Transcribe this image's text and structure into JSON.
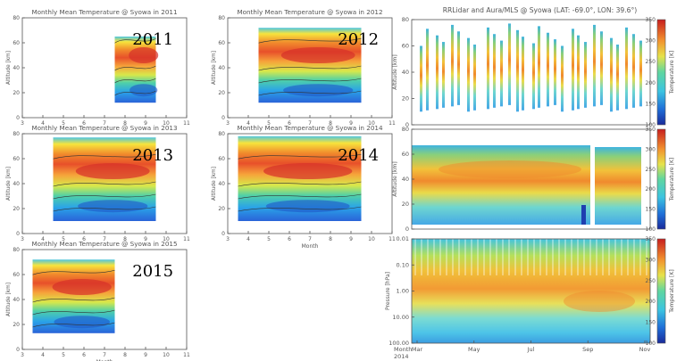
{
  "chart_data": [
    {
      "type": "heatmap",
      "title": "Monthly Mean Temperature @ Syowa in 2011",
      "panel_label": "2011",
      "ylabel": "Altitude [km]",
      "xlabel": "",
      "xlim": [
        3,
        11
      ],
      "ylim": [
        0,
        80
      ],
      "xticks": [
        "3",
        "4",
        "5",
        "6",
        "7",
        "8",
        "9",
        "10",
        "11"
      ],
      "yticks": [
        "0",
        "20",
        "40",
        "60",
        "80"
      ],
      "data_months": [
        7.5,
        9.5
      ],
      "data_altitude_km": [
        12,
        65
      ]
    },
    {
      "type": "heatmap",
      "title": "Monthly Mean Temperature @ Syowa in 2012",
      "panel_label": "2012",
      "ylabel": "Altitude [km]",
      "xlabel": "",
      "xlim": [
        3,
        11
      ],
      "ylim": [
        0,
        80
      ],
      "xticks": [
        "3",
        "4",
        "5",
        "6",
        "7",
        "8",
        "9",
        "10",
        "11"
      ],
      "yticks": [
        "0",
        "20",
        "40",
        "60",
        "80"
      ],
      "data_months": [
        4.5,
        9.5
      ],
      "data_altitude_km": [
        12,
        72
      ]
    },
    {
      "type": "heatmap",
      "title": "Monthly Mean Temperature @ Syowa in 2013",
      "panel_label": "2013",
      "ylabel": "Altitude [km]",
      "xlabel": "",
      "xlim": [
        3,
        11
      ],
      "ylim": [
        0,
        80
      ],
      "xticks": [
        "3",
        "4",
        "5",
        "6",
        "7",
        "8",
        "9",
        "10",
        "11"
      ],
      "yticks": [
        "0",
        "20",
        "40",
        "60",
        "80"
      ],
      "data_months": [
        4.5,
        9.5
      ],
      "data_altitude_km": [
        10,
        77
      ]
    },
    {
      "type": "heatmap",
      "title": "Monthly Mean Temperature @ Syowa in 2014",
      "panel_label": "2014",
      "ylabel": "Altitude [km]",
      "xlabel": "Month",
      "xlim": [
        3,
        11
      ],
      "ylim": [
        0,
        80
      ],
      "xticks": [
        "3",
        "4",
        "5",
        "6",
        "7",
        "8",
        "9",
        "10",
        "11"
      ],
      "yticks": [
        "0",
        "20",
        "40",
        "60",
        "80"
      ],
      "data_months": [
        3.5,
        9.5
      ],
      "data_altitude_km": [
        10,
        78
      ]
    },
    {
      "type": "heatmap",
      "title": "Monthly Mean Temperature @ Syowa in 2015",
      "panel_label": "2015",
      "ylabel": "Altitude [km]",
      "xlabel": "Month",
      "xlim": [
        3,
        11
      ],
      "ylim": [
        0,
        80
      ],
      "xticks": [
        "3",
        "4",
        "5",
        "6",
        "7",
        "8",
        "9",
        "10",
        "11"
      ],
      "yticks": [
        "0",
        "20",
        "40",
        "60",
        "80"
      ],
      "data_months": [
        3.5,
        7.5
      ],
      "data_altitude_km": [
        13,
        72
      ]
    },
    {
      "type": "heatmap",
      "title": "RRLidar and Aura/MLS @ Syowa (LAT: -69.0°, LON: 39.6°)",
      "panels": [
        {
          "ylabel": "Altitude [km]",
          "yticks": [
            "0",
            "20",
            "40",
            "60",
            "80"
          ],
          "ylim": [
            0,
            80
          ],
          "source": "lidar profiles (sparse)"
        },
        {
          "ylabel": "Altitude [km]",
          "yticks": [
            "0",
            "20",
            "40",
            "60",
            "80"
          ],
          "ylim": [
            0,
            80
          ],
          "source": "lidar interpolated"
        },
        {
          "ylabel": "Pressure [hPa]",
          "yticks": [
            "0.01",
            "0.10",
            "1.00",
            "10.00",
            "100.00"
          ],
          "ylim_hPa": [
            100,
            0.01
          ],
          "scale": "log",
          "source": "Aura/MLS"
        }
      ],
      "x_label": "Month",
      "x_year": "2014",
      "xticks": [
        "Mar",
        "May",
        "Jul",
        "Sep",
        "Nov"
      ],
      "colorbar": {
        "label": "Temperature [K]",
        "ticks": [
          "100",
          "150",
          "200",
          "250",
          "300",
          "350"
        ],
        "range": [
          100,
          350
        ]
      }
    }
  ]
}
